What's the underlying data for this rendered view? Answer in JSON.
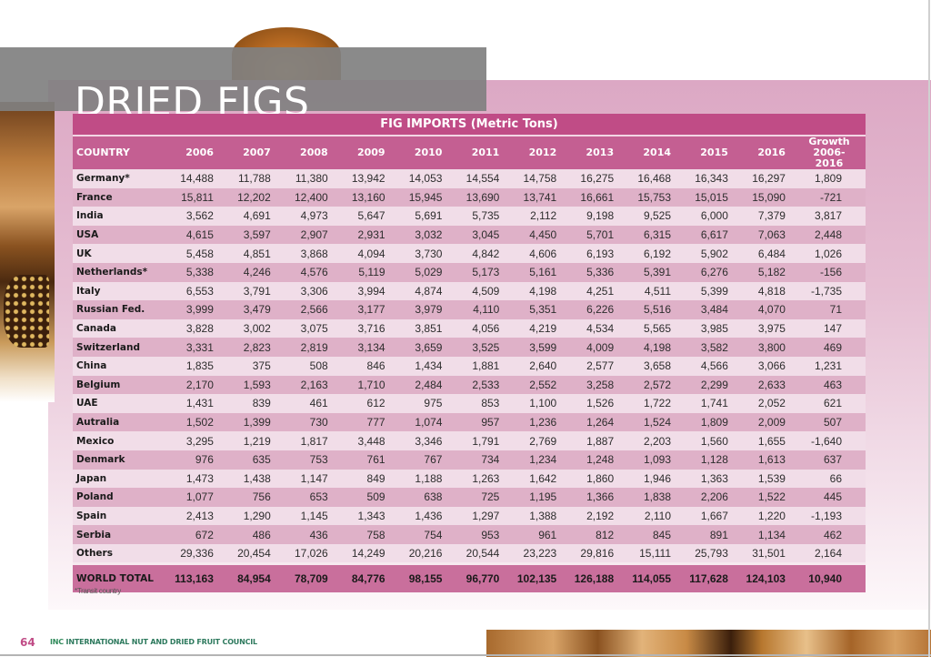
{
  "page": {
    "title": "DRIED FIGS",
    "page_number": "64",
    "footer_brand": "INC",
    "footer_org": "INTERNATIONAL NUT AND DRIED FRUIT COUNCIL",
    "footnote": "*Transit country",
    "colors": {
      "caption_bg": "#c04c86",
      "header_bg": "#c45f92",
      "row_light": "#f1dde8",
      "row_dark": "#dfb1c8",
      "total_bg": "#c96f9c",
      "title_band": "#808080",
      "page_number": "#c04c86"
    }
  },
  "table": {
    "caption": "FIG IMPORTS (Metric Tons)",
    "headers": [
      "COUNTRY",
      "2006",
      "2007",
      "2008",
      "2009",
      "2010",
      "2011",
      "2012",
      "2013",
      "2014",
      "2015",
      "2016"
    ],
    "growth_header_line1": "Growth",
    "growth_header_line2": "2006-2016",
    "rows": [
      {
        "country": "Germany*",
        "values": [
          "14,488",
          "11,788",
          "11,380",
          "13,942",
          "14,053",
          "14,554",
          "14,758",
          "16,275",
          "16,468",
          "16,343",
          "16,297"
        ],
        "growth": "1,809"
      },
      {
        "country": "France",
        "values": [
          "15,811",
          "12,202",
          "12,400",
          "13,160",
          "15,945",
          "13,690",
          "13,741",
          "16,661",
          "15,753",
          "15,015",
          "15,090"
        ],
        "growth": "-721"
      },
      {
        "country": "India",
        "values": [
          "3,562",
          "4,691",
          "4,973",
          "5,647",
          "5,691",
          "5,735",
          "2,112",
          "9,198",
          "9,525",
          "6,000",
          "7,379"
        ],
        "growth": "3,817"
      },
      {
        "country": "USA",
        "values": [
          "4,615",
          "3,597",
          "2,907",
          "2,931",
          "3,032",
          "3,045",
          "4,450",
          "5,701",
          "6,315",
          "6,617",
          "7,063"
        ],
        "growth": "2,448"
      },
      {
        "country": "UK",
        "values": [
          "5,458",
          "4,851",
          "3,868",
          "4,094",
          "3,730",
          "4,842",
          "4,606",
          "6,193",
          "6,192",
          "5,902",
          "6,484"
        ],
        "growth": "1,026"
      },
      {
        "country": "Netherlands*",
        "values": [
          "5,338",
          "4,246",
          "4,576",
          "5,119",
          "5,029",
          "5,173",
          "5,161",
          "5,336",
          "5,391",
          "6,276",
          "5,182"
        ],
        "growth": "-156"
      },
      {
        "country": "Italy",
        "values": [
          "6,553",
          "3,791",
          "3,306",
          "3,994",
          "4,874",
          "4,509",
          "4,198",
          "4,251",
          "4,511",
          "5,399",
          "4,818"
        ],
        "growth": "-1,735"
      },
      {
        "country": "Russian Fed.",
        "values": [
          "3,999",
          "3,479",
          "2,566",
          "3,177",
          "3,979",
          "4,110",
          "5,351",
          "6,226",
          "5,516",
          "3,484",
          "4,070"
        ],
        "growth": "71"
      },
      {
        "country": "Canada",
        "values": [
          "3,828",
          "3,002",
          "3,075",
          "3,716",
          "3,851",
          "4,056",
          "4,219",
          "4,534",
          "5,565",
          "3,985",
          "3,975"
        ],
        "growth": "147"
      },
      {
        "country": "Switzerland",
        "values": [
          "3,331",
          "2,823",
          "2,819",
          "3,134",
          "3,659",
          "3,525",
          "3,599",
          "4,009",
          "4,198",
          "3,582",
          "3,800"
        ],
        "growth": "469"
      },
      {
        "country": "China",
        "values": [
          "1,835",
          "375",
          "508",
          "846",
          "1,434",
          "1,881",
          "2,640",
          "2,577",
          "3,658",
          "4,566",
          "3,066"
        ],
        "growth": "1,231"
      },
      {
        "country": "Belgium",
        "values": [
          "2,170",
          "1,593",
          "2,163",
          "1,710",
          "2,484",
          "2,533",
          "2,552",
          "3,258",
          "2,572",
          "2,299",
          "2,633"
        ],
        "growth": "463"
      },
      {
        "country": "UAE",
        "values": [
          "1,431",
          "839",
          "461",
          "612",
          "975",
          "853",
          "1,100",
          "1,526",
          "1,722",
          "1,741",
          "2,052"
        ],
        "growth": "621"
      },
      {
        "country": "Autralia",
        "values": [
          "1,502",
          "1,399",
          "730",
          "777",
          "1,074",
          "957",
          "1,236",
          "1,264",
          "1,524",
          "1,809",
          "2,009"
        ],
        "growth": "507"
      },
      {
        "country": "Mexico",
        "values": [
          "3,295",
          "1,219",
          "1,817",
          "3,448",
          "3,346",
          "1,791",
          "2,769",
          "1,887",
          "2,203",
          "1,560",
          "1,655"
        ],
        "growth": "-1,640"
      },
      {
        "country": "Denmark",
        "values": [
          "976",
          "635",
          "753",
          "761",
          "767",
          "734",
          "1,234",
          "1,248",
          "1,093",
          "1,128",
          "1,613"
        ],
        "growth": "637"
      },
      {
        "country": "Japan",
        "values": [
          "1,473",
          "1,438",
          "1,147",
          "849",
          "1,188",
          "1,263",
          "1,642",
          "1,860",
          "1,946",
          "1,363",
          "1,539"
        ],
        "growth": "66"
      },
      {
        "country": "Poland",
        "values": [
          "1,077",
          "756",
          "653",
          "509",
          "638",
          "725",
          "1,195",
          "1,366",
          "1,838",
          "2,206",
          "1,522"
        ],
        "growth": "445"
      },
      {
        "country": "Spain",
        "values": [
          "2,413",
          "1,290",
          "1,145",
          "1,343",
          "1,436",
          "1,297",
          "1,388",
          "2,192",
          "2,110",
          "1,667",
          "1,220"
        ],
        "growth": "-1,193"
      },
      {
        "country": "Serbia",
        "values": [
          "672",
          "486",
          "436",
          "758",
          "754",
          "953",
          "961",
          "812",
          "845",
          "891",
          "1,134"
        ],
        "growth": "462"
      },
      {
        "country": "Others",
        "values": [
          "29,336",
          "20,454",
          "17,026",
          "14,249",
          "20,216",
          "20,544",
          "23,223",
          "29,816",
          "15,111",
          "25,793",
          "31,501"
        ],
        "growth": "2,164"
      }
    ],
    "total": {
      "country": "WORLD TOTAL",
      "values": [
        "113,163",
        "84,954",
        "78,709",
        "84,776",
        "98,155",
        "96,770",
        "102,135",
        "126,188",
        "114,055",
        "117,628",
        "124,103"
      ],
      "growth": "10,940"
    }
  }
}
